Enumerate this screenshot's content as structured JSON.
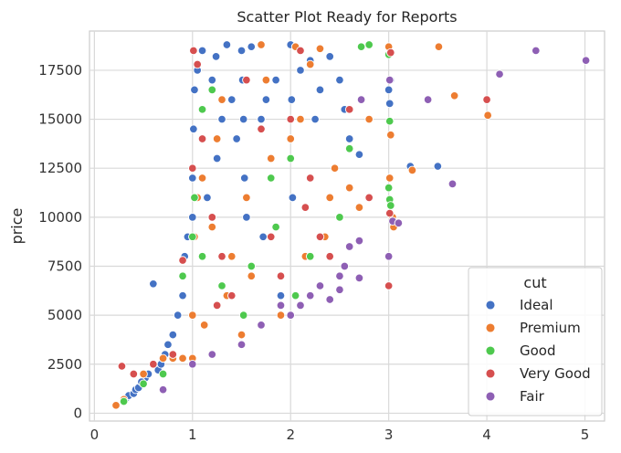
{
  "chart_data": {
    "type": "scatter",
    "title": "Scatter Plot Ready for Reports",
    "xlabel": "",
    "ylabel": "price",
    "xlim": [
      -0.05,
      5.2
    ],
    "ylim": [
      -400,
      19500
    ],
    "x_ticks": [
      0,
      1,
      2,
      3,
      4,
      5
    ],
    "x_tick_labels": [
      "0",
      "1",
      "2",
      "3",
      "4",
      "5"
    ],
    "y_ticks": [
      0,
      2500,
      5000,
      7500,
      10000,
      12500,
      15000,
      17500
    ],
    "y_tick_labels": [
      "0",
      "2500",
      "5000",
      "7500",
      "10000",
      "12500",
      "15000",
      "17500"
    ],
    "grid": true,
    "legend": {
      "title": "cut",
      "position": "bottom-right",
      "entries": [
        "Ideal",
        "Premium",
        "Good",
        "Very Good",
        "Fair"
      ]
    },
    "series": [
      {
        "name": "Ideal",
        "color": "#4472c4",
        "points": [
          [
            0.3,
            600
          ],
          [
            0.31,
            640
          ],
          [
            0.33,
            800
          ],
          [
            0.35,
            900
          ],
          [
            0.4,
            1000
          ],
          [
            0.42,
            1200
          ],
          [
            0.5,
            1500
          ],
          [
            0.52,
            1800
          ],
          [
            0.55,
            2000
          ],
          [
            0.6,
            6600
          ],
          [
            0.7,
            2800
          ],
          [
            0.72,
            3000
          ],
          [
            0.75,
            3500
          ],
          [
            0.8,
            4000
          ],
          [
            0.85,
            5000
          ],
          [
            0.9,
            6000
          ],
          [
            0.92,
            8000
          ],
          [
            0.95,
            9000
          ],
          [
            1.0,
            10000
          ],
          [
            1.0,
            12000
          ],
          [
            1.01,
            14500
          ],
          [
            1.02,
            16500
          ],
          [
            1.05,
            17500
          ],
          [
            1.1,
            18500
          ],
          [
            1.2,
            17000
          ],
          [
            1.24,
            18200
          ],
          [
            1.3,
            15000
          ],
          [
            1.35,
            18800
          ],
          [
            1.4,
            16000
          ],
          [
            1.5,
            18500
          ],
          [
            1.51,
            17000
          ],
          [
            1.52,
            15000
          ],
          [
            1.53,
            12000
          ],
          [
            1.55,
            10000
          ],
          [
            1.6,
            18700
          ],
          [
            1.7,
            15000
          ],
          [
            1.72,
            9000
          ],
          [
            1.8,
            12000
          ],
          [
            1.85,
            17000
          ],
          [
            1.9,
            6000
          ],
          [
            2.0,
            18800
          ],
          [
            2.01,
            16000
          ],
          [
            2.02,
            11000
          ],
          [
            2.1,
            17500
          ],
          [
            2.2,
            18000
          ],
          [
            2.3,
            16500
          ],
          [
            2.4,
            18200
          ],
          [
            2.5,
            17000
          ],
          [
            2.55,
            15500
          ],
          [
            2.6,
            14000
          ],
          [
            2.7,
            13200
          ],
          [
            3.0,
            16500
          ],
          [
            3.01,
            15800
          ],
          [
            3.02,
            17000
          ],
          [
            3.22,
            12600
          ],
          [
            3.5,
            12600
          ],
          [
            0.45,
            1300
          ],
          [
            0.48,
            1600
          ],
          [
            0.65,
            2200
          ],
          [
            0.68,
            2500
          ],
          [
            1.15,
            11000
          ],
          [
            1.25,
            13000
          ],
          [
            1.45,
            14000
          ],
          [
            1.75,
            16000
          ],
          [
            2.25,
            15000
          ]
        ]
      },
      {
        "name": "Premium",
        "color": "#ed7d31",
        "points": [
          [
            0.22,
            400
          ],
          [
            0.3,
            700
          ],
          [
            0.5,
            2000
          ],
          [
            0.7,
            2800
          ],
          [
            0.8,
            2800
          ],
          [
            0.9,
            2800
          ],
          [
            1.0,
            2800
          ],
          [
            1.0,
            5000
          ],
          [
            1.02,
            9000
          ],
          [
            1.05,
            11000
          ],
          [
            1.1,
            12000
          ],
          [
            1.2,
            9500
          ],
          [
            1.25,
            14000
          ],
          [
            1.3,
            16000
          ],
          [
            1.4,
            8000
          ],
          [
            1.5,
            4000
          ],
          [
            1.55,
            11000
          ],
          [
            1.6,
            7000
          ],
          [
            1.7,
            18800
          ],
          [
            1.75,
            17000
          ],
          [
            1.8,
            13000
          ],
          [
            1.9,
            5000
          ],
          [
            2.0,
            14000
          ],
          [
            2.05,
            18700
          ],
          [
            2.1,
            15000
          ],
          [
            2.2,
            17800
          ],
          [
            2.3,
            18600
          ],
          [
            2.4,
            11000
          ],
          [
            2.5,
            10000
          ],
          [
            2.6,
            11500
          ],
          [
            2.7,
            10500
          ],
          [
            2.8,
            15000
          ],
          [
            3.0,
            18700
          ],
          [
            3.01,
            12000
          ],
          [
            3.02,
            14200
          ],
          [
            3.04,
            10000
          ],
          [
            3.05,
            9500
          ],
          [
            3.24,
            12400
          ],
          [
            3.51,
            18700
          ],
          [
            3.67,
            16200
          ],
          [
            4.01,
            15200
          ],
          [
            1.12,
            4500
          ],
          [
            1.35,
            6000
          ],
          [
            2.15,
            8000
          ],
          [
            2.35,
            9000
          ],
          [
            2.45,
            12500
          ]
        ]
      },
      {
        "name": "Good",
        "color": "#4ec94e",
        "points": [
          [
            0.3,
            600
          ],
          [
            0.5,
            1500
          ],
          [
            0.7,
            2000
          ],
          [
            0.8,
            3000
          ],
          [
            0.9,
            7000
          ],
          [
            1.0,
            9000
          ],
          [
            1.02,
            11000
          ],
          [
            1.1,
            15500
          ],
          [
            1.2,
            16500
          ],
          [
            1.5,
            3500
          ],
          [
            1.52,
            5000
          ],
          [
            1.6,
            7500
          ],
          [
            1.8,
            12000
          ],
          [
            1.85,
            9500
          ],
          [
            2.0,
            13000
          ],
          [
            2.2,
            8000
          ],
          [
            2.5,
            10000
          ],
          [
            2.6,
            13500
          ],
          [
            2.72,
            18700
          ],
          [
            2.8,
            18800
          ],
          [
            3.0,
            18300
          ],
          [
            3.01,
            14900
          ],
          [
            3.0,
            11500
          ],
          [
            3.01,
            10900
          ],
          [
            3.02,
            10600
          ],
          [
            1.1,
            8000
          ],
          [
            1.3,
            6500
          ],
          [
            2.05,
            6000
          ]
        ]
      },
      {
        "name": "Very Good",
        "color": "#d64f4f",
        "points": [
          [
            0.28,
            2400
          ],
          [
            0.4,
            2000
          ],
          [
            0.6,
            2500
          ],
          [
            0.8,
            3000
          ],
          [
            0.9,
            7800
          ],
          [
            1.0,
            12500
          ],
          [
            1.01,
            18500
          ],
          [
            1.05,
            17800
          ],
          [
            1.1,
            14000
          ],
          [
            1.2,
            10000
          ],
          [
            1.3,
            8000
          ],
          [
            1.4,
            6000
          ],
          [
            1.55,
            17000
          ],
          [
            1.7,
            14500
          ],
          [
            1.8,
            9000
          ],
          [
            1.9,
            7000
          ],
          [
            2.0,
            15000
          ],
          [
            2.1,
            18500
          ],
          [
            2.2,
            12000
          ],
          [
            2.3,
            9000
          ],
          [
            2.4,
            8000
          ],
          [
            2.5,
            7000
          ],
          [
            2.6,
            15500
          ],
          [
            2.8,
            11000
          ],
          [
            3.0,
            6500
          ],
          [
            3.01,
            10200
          ],
          [
            3.02,
            18400
          ],
          [
            4.0,
            16000
          ],
          [
            1.25,
            5500
          ],
          [
            2.15,
            10500
          ]
        ]
      },
      {
        "name": "Fair",
        "color": "#8e5fb4",
        "points": [
          [
            0.7,
            1200
          ],
          [
            1.0,
            2500
          ],
          [
            1.2,
            3000
          ],
          [
            1.5,
            3500
          ],
          [
            1.7,
            4500
          ],
          [
            1.9,
            5500
          ],
          [
            2.0,
            5000
          ],
          [
            2.1,
            5500
          ],
          [
            2.2,
            6000
          ],
          [
            2.3,
            6500
          ],
          [
            2.5,
            6300
          ],
          [
            2.5,
            7000
          ],
          [
            2.6,
            8500
          ],
          [
            2.7,
            8800
          ],
          [
            2.7,
            6900
          ],
          [
            2.72,
            16000
          ],
          [
            3.0,
            8000
          ],
          [
            3.01,
            17000
          ],
          [
            3.04,
            9800
          ],
          [
            3.1,
            9700
          ],
          [
            3.4,
            16000
          ],
          [
            3.65,
            11700
          ],
          [
            4.13,
            17300
          ],
          [
            4.5,
            18500
          ],
          [
            5.01,
            18000
          ],
          [
            2.4,
            5800
          ],
          [
            2.55,
            7500
          ]
        ]
      }
    ]
  }
}
